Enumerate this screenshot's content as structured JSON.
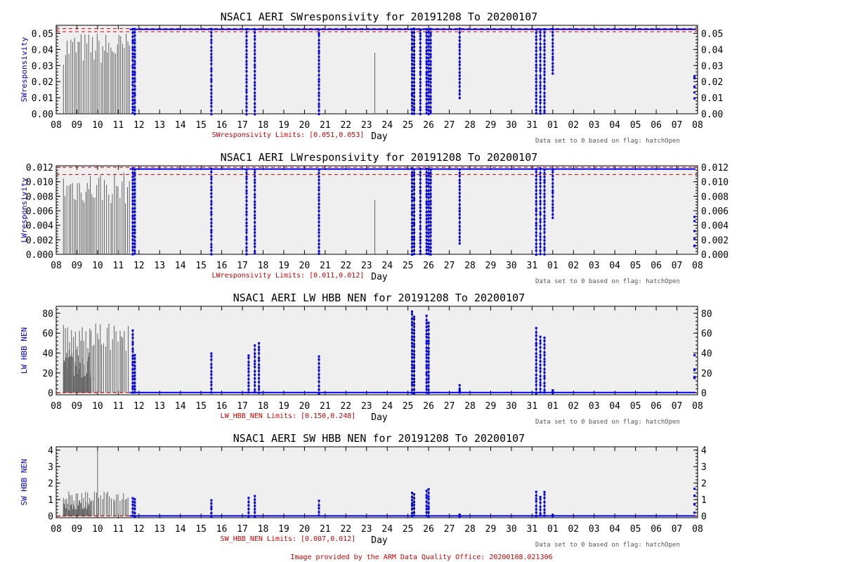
{
  "colors": {
    "plot_bg": "#efefef",
    "qc_gray": "#606060",
    "data_blue": "#0000ee",
    "limit_red": "#cc0000",
    "ylabel_blue": "#0000cc"
  },
  "x_axis": {
    "label": "Day",
    "tick_labels": [
      "08",
      "09",
      "10",
      "11",
      "12",
      "13",
      "14",
      "15",
      "16",
      "17",
      "18",
      "19",
      "20",
      "21",
      "22",
      "23",
      "24",
      "25",
      "26",
      "27",
      "28",
      "29",
      "30",
      "31",
      "01",
      "02",
      "03",
      "04",
      "05",
      "06",
      "07",
      "08"
    ]
  },
  "footer": "Image provided by the ARM Data Quality Office: 20200108.021306",
  "chart_data": [
    {
      "type": "line",
      "title": "NSAC1 AERI SWresponsivity for 20191208 To 20200107",
      "ylabel": "SWresponsivity",
      "xlabel": "Day",
      "ylim": [
        0,
        0.055
      ],
      "yticks": [
        "0.00",
        "0.01",
        "0.02",
        "0.03",
        "0.04",
        "0.05"
      ],
      "ytick_values": [
        0,
        0.01,
        0.02,
        0.03,
        0.04,
        0.05
      ],
      "limits_text": "SWresponsivity Limits: [0.051,0.053]",
      "limits": [
        0.051,
        0.053
      ],
      "note": "Data set to 0 based on flag: hatchOpen",
      "baseline": 0.0525,
      "gray_max": 0.051,
      "dropouts": [
        [
          3.7,
          0.0
        ],
        [
          3.8,
          0.0
        ],
        [
          7.5,
          0.0
        ],
        [
          9.2,
          0.0
        ],
        [
          9.6,
          0.0
        ],
        [
          12.7,
          0.0
        ],
        [
          17.2,
          0.0
        ],
        [
          17.3,
          0.0
        ],
        [
          17.6,
          0.0
        ],
        [
          17.9,
          0.0
        ],
        [
          18.0,
          0.0
        ],
        [
          18.1,
          0.0
        ],
        [
          19.5,
          0.01
        ],
        [
          23.2,
          0.0
        ],
        [
          23.4,
          0.0
        ],
        [
          23.6,
          0.0
        ],
        [
          24.0,
          0.025
        ]
      ],
      "gray_spike": [
        15.4,
        0.038
      ]
    },
    {
      "type": "line",
      "title": "NSAC1 AERI LWresponsivity for 20191208 To 20200107",
      "ylabel": "LWresponsivity",
      "xlabel": "Day",
      "ylim": [
        0,
        0.0122
      ],
      "yticks": [
        "0.000",
        "0.002",
        "0.004",
        "0.006",
        "0.008",
        "0.010",
        "0.012"
      ],
      "ytick_values": [
        0,
        0.002,
        0.004,
        0.006,
        0.008,
        0.01,
        0.012
      ],
      "limits_text": "LWresponsivity Limits: [0.011,0.012]",
      "limits": [
        0.011,
        0.012
      ],
      "note": "Data set to 0 based on flag: hatchOpen",
      "baseline": 0.01175,
      "gray_max": 0.0115,
      "dropouts": [
        [
          3.7,
          0.0
        ],
        [
          3.8,
          0.0
        ],
        [
          7.5,
          0.0
        ],
        [
          9.2,
          0.0
        ],
        [
          9.6,
          0.0
        ],
        [
          12.7,
          0.0
        ],
        [
          17.2,
          0.0
        ],
        [
          17.3,
          0.0
        ],
        [
          17.6,
          0.0
        ],
        [
          17.9,
          0.0
        ],
        [
          18.0,
          0.0
        ],
        [
          18.1,
          0.0
        ],
        [
          19.5,
          0.0015
        ],
        [
          23.2,
          0.0
        ],
        [
          23.4,
          0.0
        ],
        [
          23.6,
          0.0
        ],
        [
          24.0,
          0.005
        ]
      ],
      "gray_spike": [
        15.4,
        0.0075
      ]
    },
    {
      "type": "line",
      "title": "NSAC1 AERI LW HBB NEN for 20191208 To 20200107",
      "ylabel": "LW HBB NEN",
      "xlabel": "Day",
      "ylim": [
        -2,
        87
      ],
      "yticks": [
        "0",
        "20",
        "40",
        "60",
        "80"
      ],
      "ytick_values": [
        0,
        20,
        40,
        60,
        80
      ],
      "limits_text": "LW_HBB_NEN Limits: [0.150,0.248]",
      "limits": [
        0.15,
        0.248
      ],
      "note": "Data set to 0 based on flag: hatchOpen",
      "baseline": 0.3,
      "gray_max": 70,
      "spikes": [
        [
          3.7,
          62
        ],
        [
          3.8,
          38
        ],
        [
          7.5,
          40
        ],
        [
          9.3,
          38
        ],
        [
          9.6,
          47
        ],
        [
          9.8,
          50
        ],
        [
          12.7,
          37
        ],
        [
          17.2,
          82
        ],
        [
          17.3,
          77
        ],
        [
          17.9,
          77
        ],
        [
          18.0,
          70
        ],
        [
          19.5,
          7
        ],
        [
          23.2,
          65
        ],
        [
          23.4,
          56
        ],
        [
          23.6,
          55
        ],
        [
          24.0,
          3
        ]
      ]
    },
    {
      "type": "line",
      "title": "NSAC1 AERI SW HBB NEN for 20191208 To 20200107",
      "ylabel": "SW HBB NEN",
      "xlabel": "Day",
      "ylim": [
        -0.1,
        4.2
      ],
      "yticks": [
        "0",
        "1",
        "2",
        "3",
        "4"
      ],
      "ytick_values": [
        0,
        1,
        2,
        3,
        4
      ],
      "limits_text": "SW_HBB_NEN Limits: [0.007,0.012]",
      "limits": [
        0.007,
        0.012
      ],
      "note": "Data set to 0 based on flag: hatchOpen",
      "baseline": 0.01,
      "gray_max": 1.5,
      "spikes": [
        [
          3.7,
          1.1
        ],
        [
          3.8,
          1.0
        ],
        [
          7.5,
          1.0
        ],
        [
          9.3,
          1.1
        ],
        [
          9.6,
          1.2
        ],
        [
          12.7,
          0.9
        ],
        [
          17.2,
          1.4
        ],
        [
          17.3,
          1.3
        ],
        [
          17.9,
          1.5
        ],
        [
          18.0,
          1.6
        ],
        [
          19.5,
          0.1
        ],
        [
          23.2,
          1.5
        ],
        [
          23.4,
          1.2
        ],
        [
          23.6,
          1.5
        ],
        [
          24.0,
          0.05
        ]
      ],
      "gray_spike": [
        2.0,
        4.0
      ]
    }
  ]
}
